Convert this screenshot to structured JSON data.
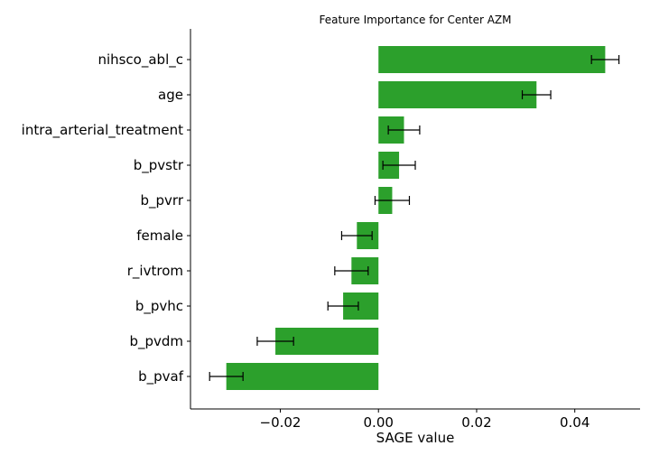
{
  "chart_data": {
    "type": "bar",
    "orientation": "horizontal",
    "title": "Feature Importance for Center AZM",
    "xlabel": "SAGE value",
    "ylabel": "",
    "xlim": [
      -0.0383,
      0.0533
    ],
    "xticks": [
      -0.02,
      0.0,
      0.02,
      0.04
    ],
    "xtick_labels": [
      "−0.02",
      "0.00",
      "0.02",
      "0.04"
    ],
    "categories": [
      "nihsco_abl_c",
      "age",
      "intra_arterial_treatment",
      "b_pvstr",
      "b_pvrr",
      "female",
      "r_ivtrom",
      "b_pvhc",
      "b_pvdm",
      "b_pvaf"
    ],
    "values": [
      0.0462,
      0.0322,
      0.0052,
      0.0042,
      0.0028,
      -0.0044,
      -0.0055,
      -0.0072,
      -0.021,
      -0.031
    ],
    "errors": [
      0.0028,
      0.0029,
      0.0032,
      0.0033,
      0.0035,
      0.0031,
      0.0034,
      0.0031,
      0.0037,
      0.0034
    ],
    "bar_color": "#2ca02c",
    "error_color": "#000000",
    "grid": false,
    "legend": "none"
  }
}
